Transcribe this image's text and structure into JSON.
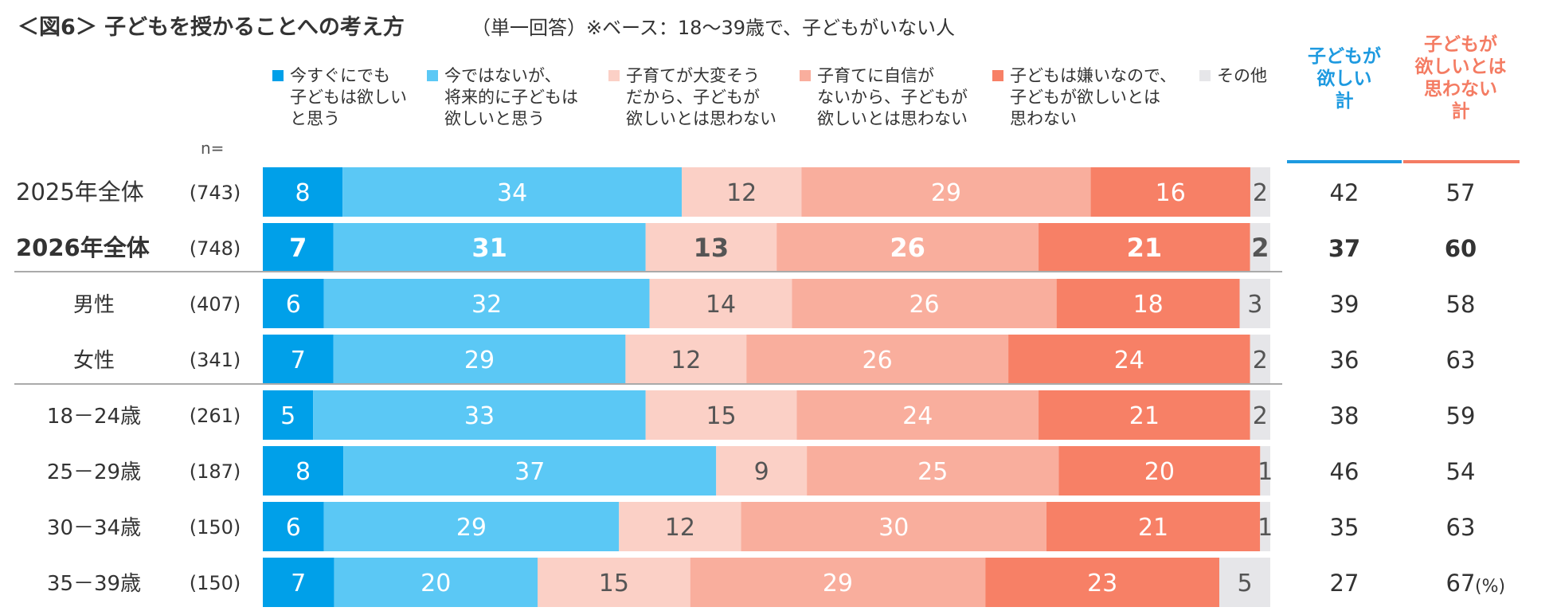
{
  "chart_data": {
    "type": "bar",
    "stacked": true,
    "orientation": "horizontal",
    "title": "＜図6＞ 子どもを授かることへの考え方",
    "subtitle": "（単一回答）※ベース：18～39歳で、子どもがいない人",
    "n_label": "n=",
    "unit_label": "(%)",
    "series": [
      {
        "name": "今すぐにでも子どもは欲しいと思う",
        "legend_lines": [
          "今すぐにでも",
          "子どもは欲しい",
          "と思う"
        ],
        "color": "#00a0e9",
        "label_color": "#ffffff",
        "values": [
          8,
          7,
          6,
          7,
          5,
          8,
          6,
          7
        ]
      },
      {
        "name": "今ではないが、将来的に子どもは欲しいと思う",
        "legend_lines": [
          "今ではないが、",
          "将来的に子どもは",
          "欲しいと思う"
        ],
        "color": "#5bc8f5",
        "label_color": "#ffffff",
        "values": [
          34,
          31,
          32,
          29,
          33,
          37,
          29,
          20
        ]
      },
      {
        "name": "子育てが大変そうだから、子どもが欲しいとは思わない",
        "legend_lines": [
          "子育てが大変そう",
          "だから、子どもが",
          "欲しいとは思わない"
        ],
        "color": "#fbd0c6",
        "label_color": "#555555",
        "values": [
          12,
          13,
          14,
          12,
          15,
          9,
          12,
          15
        ]
      },
      {
        "name": "子育てに自信がないから、子どもが欲しいとは思わない",
        "legend_lines": [
          "子育てに自信が",
          "ないから、子どもが",
          "欲しいとは思わない"
        ],
        "color": "#f9ae9d",
        "label_color": "#ffffff",
        "values": [
          29,
          26,
          26,
          26,
          24,
          25,
          30,
          29
        ]
      },
      {
        "name": "子どもは嫌いなので、子どもが欲しいとは思わない",
        "legend_lines": [
          "子どもは嫌いなので、",
          "子どもが欲しいとは",
          "思わない"
        ],
        "color": "#f78066",
        "label_color": "#ffffff",
        "values": [
          16,
          21,
          18,
          24,
          21,
          20,
          21,
          23
        ]
      },
      {
        "name": "その他",
        "legend_lines": [
          "その他"
        ],
        "color": "#e6e6e9",
        "label_color": "#555555",
        "values": [
          2,
          2,
          3,
          2,
          2,
          1,
          1,
          5
        ]
      }
    ],
    "categories": [
      "2025年全体",
      "2026年全体",
      "男性",
      "女性",
      "18－24歳",
      "25－29歳",
      "30－34歳",
      "35－39歳"
    ],
    "n_values": [
      "(743)",
      "(748)",
      "(407)",
      "(341)",
      "(261)",
      "(187)",
      "(150)",
      "(150)"
    ],
    "bold_rows": [
      1
    ],
    "summary_columns": [
      {
        "header_lines": [
          "子どもが",
          "欲しい",
          "計"
        ],
        "color": "#1e9ae0",
        "values": [
          42,
          37,
          39,
          36,
          38,
          46,
          35,
          27
        ]
      },
      {
        "header_lines": [
          "子どもが",
          "欲しいとは",
          "思わない",
          "計"
        ],
        "color": "#f47c63",
        "values": [
          57,
          60,
          58,
          63,
          59,
          54,
          63,
          67
        ]
      }
    ],
    "xlim": [
      0,
      100
    ]
  }
}
